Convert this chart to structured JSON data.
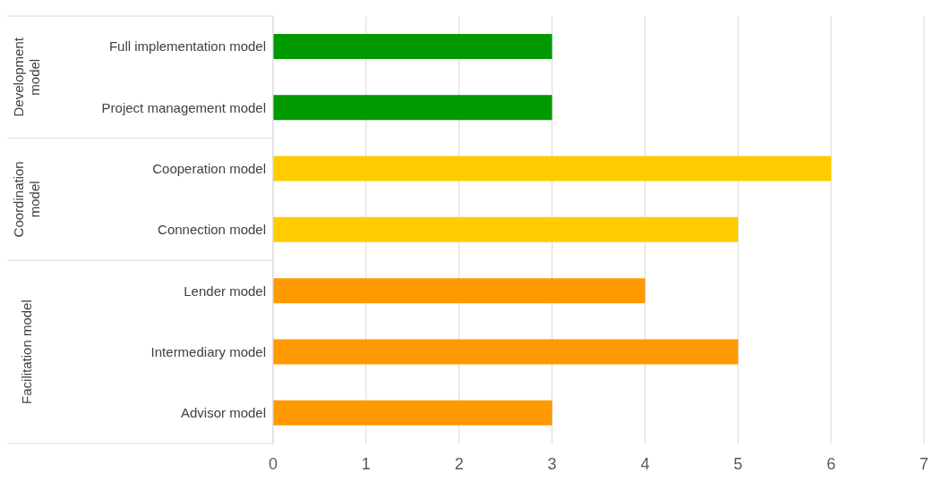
{
  "chart_data": {
    "type": "bar",
    "orientation": "horizontal",
    "categories": [
      "Full implementation model",
      "Project management model",
      "Cooperation model",
      "Connection model",
      "Lender model",
      "Intermediary model",
      "Advisor model"
    ],
    "values": [
      3,
      3,
      6,
      5,
      4,
      5,
      3
    ],
    "colors": [
      "#009900",
      "#009900",
      "#ffcc00",
      "#ffcc00",
      "#ff9900",
      "#ff9900",
      "#ff9900"
    ],
    "annotations": [
      "Development model",
      "Coordination model",
      "Facilitation model"
    ],
    "xlim": [
      0,
      7
    ],
    "xticks": [
      0,
      1,
      2,
      3,
      4,
      5,
      6,
      7
    ],
    "grid": "x"
  }
}
